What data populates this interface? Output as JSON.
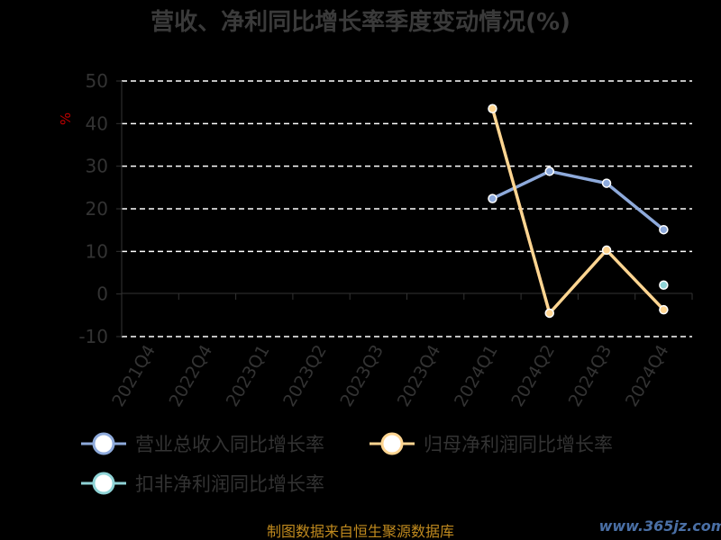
{
  "chart_data": {
    "type": "line",
    "title": "营收、净利同比增长率季度变动情况(%)",
    "ylabel": "%",
    "ylim": [
      -10,
      50
    ],
    "yticks": [
      50,
      40,
      30,
      20,
      10,
      0,
      -10
    ],
    "categories": [
      "2021Q4",
      "2022Q4",
      "2023Q1",
      "2023Q2",
      "2023Q3",
      "2023Q4",
      "2024Q1",
      "2024Q2",
      "2024Q3",
      "2024Q4"
    ],
    "grid": true,
    "legend_position": "bottom",
    "series": [
      {
        "name": "营业总收入同比增长率",
        "color": "#8eaadb",
        "values": [
          null,
          null,
          null,
          null,
          null,
          null,
          22.4,
          28.8,
          26.0,
          15.1
        ]
      },
      {
        "name": "归母净利润同比增长率",
        "color": "#ffd591",
        "values": [
          null,
          null,
          null,
          null,
          null,
          null,
          43.5,
          -4.5,
          10.3,
          -3.7
        ]
      },
      {
        "name": "扣非净利润同比增长率",
        "color": "#8fd3d6",
        "values": [
          null,
          null,
          null,
          null,
          null,
          null,
          null,
          null,
          null,
          2.1
        ]
      }
    ],
    "source": "制图数据来自恒生聚源数据库",
    "watermark": "www.365jz.com"
  }
}
